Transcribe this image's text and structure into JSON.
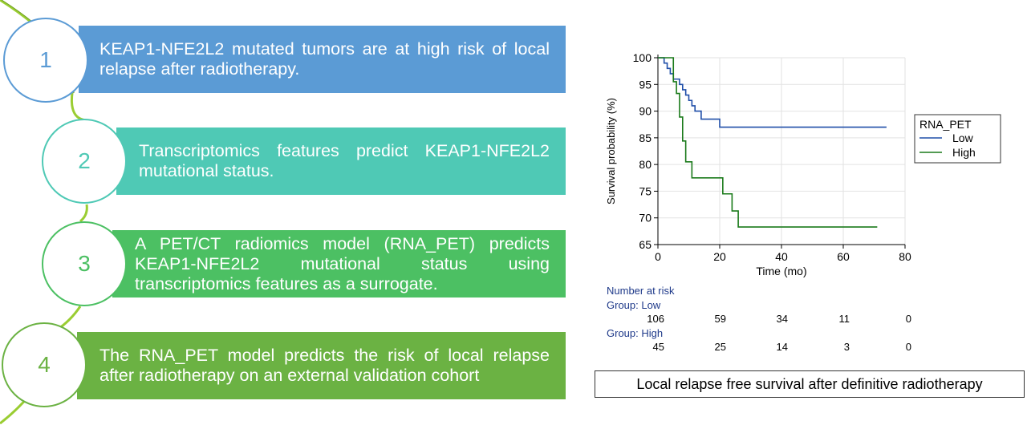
{
  "steps": [
    {
      "number": "1",
      "text": "KEAP1-NFE2L2 mutated tumors are at high risk of local relapse after radiotherapy.",
      "color": "#5b9bd5"
    },
    {
      "number": "2",
      "text": "Transcriptomics features predict KEAP1-NFE2L2 mutational status.",
      "color": "#4fc9b5"
    },
    {
      "number": "3",
      "text": "A PET/CT radiomics model (RNA_PET) predicts KEAP1-NFE2L2 mutational status using transcriptomics features as a surrogate.",
      "color": "#4cc063"
    },
    {
      "number": "4",
      "text": "The RNA_PET model predicts the risk of local relapse after radiotherapy on an external validation cohort",
      "color": "#6bb243"
    }
  ],
  "caption": "Local relapse free survival after definitive radiotherapy",
  "chart_data": {
    "type": "line",
    "xlabel": "Time (mo)",
    "ylabel": "Survival probability (%)",
    "xlim": [
      0,
      80
    ],
    "ylim": [
      65,
      100
    ],
    "xticks": [
      0,
      20,
      40,
      60,
      80
    ],
    "yticks": [
      65,
      70,
      75,
      80,
      85,
      90,
      95,
      100
    ],
    "grid": true,
    "legend": {
      "title": "RNA_PET",
      "placement": "right"
    },
    "series": [
      {
        "name": "Low",
        "color": "#1f4ea8",
        "step": true,
        "x": [
          0,
          2,
          3,
          4,
          5,
          7,
          8,
          9,
          10,
          11,
          12,
          14,
          20,
          74
        ],
        "y": [
          100,
          99,
          98,
          97,
          96,
          95,
          94,
          93,
          92,
          91,
          90,
          88.5,
          87,
          87
        ]
      },
      {
        "name": "High",
        "color": "#1a7a1a",
        "step": true,
        "x": [
          0,
          5,
          6,
          7,
          8,
          9,
          11,
          21,
          24,
          26,
          71
        ],
        "y": [
          100,
          95.5,
          93.3,
          88.9,
          84.4,
          80.5,
          77.5,
          74.5,
          71.3,
          68.3,
          68.3
        ]
      }
    ],
    "risk_table": {
      "title": "Number at risk",
      "times": [
        0,
        20,
        40,
        60,
        80
      ],
      "groups": [
        {
          "label": "Group: Low",
          "counts": [
            "106",
            "59",
            "34",
            "11",
            "0"
          ]
        },
        {
          "label": "Group: High",
          "counts": [
            "45",
            "25",
            "14",
            "3",
            "0"
          ]
        }
      ]
    }
  }
}
